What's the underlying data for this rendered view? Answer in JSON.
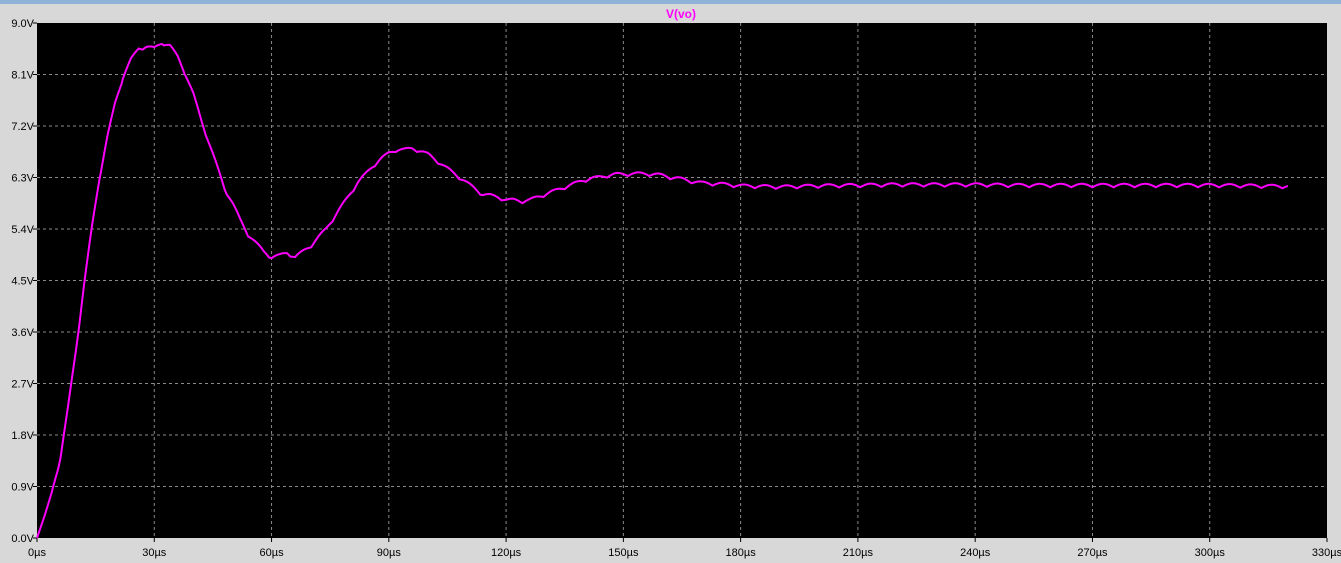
{
  "chart_data": {
    "type": "line",
    "title": "V(vo)",
    "xlabel": "",
    "ylabel": "",
    "xlim": [
      0,
      330
    ],
    "ylim": [
      0,
      9
    ],
    "x_ticks": [
      "0µs",
      "30µs",
      "60µs",
      "90µs",
      "120µs",
      "150µs",
      "180µs",
      "210µs",
      "240µs",
      "270µs",
      "300µs",
      "330µs"
    ],
    "y_ticks": [
      "0.0V",
      "0.9V",
      "1.8V",
      "2.7V",
      "3.6V",
      "4.5V",
      "5.4V",
      "6.3V",
      "7.2V",
      "8.1V",
      "9.0V"
    ],
    "grid": true,
    "series": [
      {
        "name": "V(vo)",
        "color": "#ff00ff",
        "x": [
          0,
          2,
          4,
          6,
          8,
          10,
          12,
          14,
          16,
          18,
          20,
          22,
          24,
          26,
          28,
          30,
          32,
          34,
          36,
          38,
          40,
          42,
          44,
          46,
          48,
          50,
          52,
          54,
          56,
          58,
          60,
          62,
          64,
          66,
          68,
          70,
          72,
          74,
          76,
          78,
          80,
          82,
          84,
          86,
          88,
          90,
          92,
          94,
          96,
          98,
          100,
          102,
          104,
          106,
          108,
          110,
          112,
          114,
          116,
          118,
          120,
          122,
          124,
          126,
          128,
          130,
          132,
          134,
          136,
          138,
          140,
          142,
          144,
          146,
          148,
          150,
          152,
          154,
          156,
          158,
          160,
          162,
          164,
          166,
          168,
          170,
          175,
          180,
          185,
          190,
          195,
          200,
          210,
          220,
          230,
          240,
          250,
          260,
          270,
          280,
          290,
          300,
          310,
          320
        ],
        "y": [
          0,
          0.4,
          0.85,
          1.4,
          2.3,
          3.3,
          4.4,
          5.4,
          6.3,
          7.0,
          7.6,
          8.05,
          8.35,
          8.55,
          8.58,
          8.55,
          8.65,
          8.6,
          8.4,
          8.1,
          7.75,
          7.3,
          6.9,
          6.5,
          6.1,
          5.85,
          5.55,
          5.3,
          5.15,
          5.0,
          4.9,
          4.93,
          4.98,
          4.9,
          5.0,
          5.1,
          5.25,
          5.4,
          5.6,
          5.8,
          6.0,
          6.2,
          6.35,
          6.5,
          6.62,
          6.72,
          6.78,
          6.78,
          6.8,
          6.76,
          6.7,
          6.6,
          6.5,
          6.4,
          6.3,
          6.2,
          6.1,
          6.0,
          5.98,
          5.95,
          5.9,
          5.9,
          5.88,
          5.9,
          5.95,
          6.0,
          6.05,
          6.1,
          6.15,
          6.2,
          6.25,
          6.28,
          6.3,
          6.33,
          6.35,
          6.35,
          6.36,
          6.36,
          6.36,
          6.35,
          6.33,
          6.3,
          6.28,
          6.25,
          6.22,
          6.2,
          6.18,
          6.15,
          6.14,
          6.13,
          6.14,
          6.15,
          6.16,
          6.17,
          6.17,
          6.17,
          6.16,
          6.16,
          6.16,
          6.16,
          6.16,
          6.16,
          6.15,
          6.14
        ]
      }
    ]
  }
}
